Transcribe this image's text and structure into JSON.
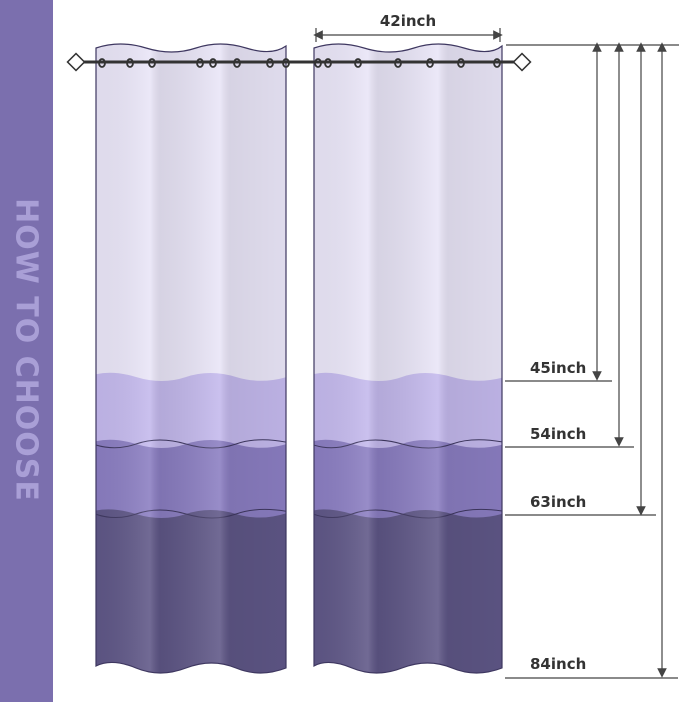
{
  "sidebar": {
    "title": "HOW TO CHOOSE"
  },
  "dimensions": {
    "width": "42inch",
    "lengths": [
      "45inch",
      "54inch",
      "63inch",
      "84inch"
    ]
  },
  "colors": {
    "sidebar": "#7b6fae",
    "band_top": "#e9e5f7",
    "band_light": "#c3b8ec",
    "band_mid": "#8a7dc1",
    "band_dark": "#5e5686"
  }
}
